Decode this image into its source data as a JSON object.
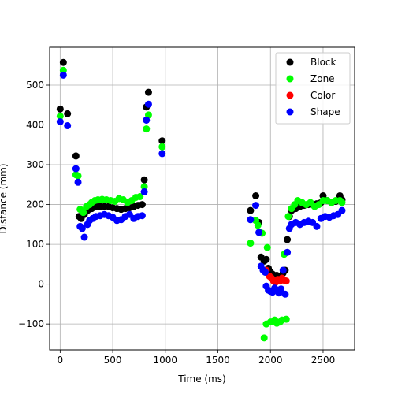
{
  "chart_data": {
    "type": "scatter",
    "title": "",
    "xlabel": "Time (ms)",
    "ylabel": "Distance (mm)",
    "xlim": [
      -100,
      2800
    ],
    "ylim": [
      -165,
      595
    ],
    "xticks": [
      0,
      500,
      1000,
      1500,
      2000,
      2500
    ],
    "yticks": [
      -100,
      0,
      100,
      200,
      300,
      400,
      500
    ],
    "grid": true,
    "legend_position": "top-right",
    "series": [
      {
        "name": "Block",
        "color": "#000000",
        "points": [
          [
            0,
            440
          ],
          [
            30,
            557
          ],
          [
            70,
            428
          ],
          [
            150,
            322
          ],
          [
            180,
            170
          ],
          [
            200,
            165
          ],
          [
            230,
            175
          ],
          [
            260,
            185
          ],
          [
            300,
            190
          ],
          [
            340,
            195
          ],
          [
            380,
            195
          ],
          [
            420,
            195
          ],
          [
            460,
            195
          ],
          [
            500,
            192
          ],
          [
            540,
            190
          ],
          [
            580,
            188
          ],
          [
            620,
            190
          ],
          [
            660,
            192
          ],
          [
            700,
            195
          ],
          [
            740,
            198
          ],
          [
            780,
            200
          ],
          [
            800,
            262
          ],
          [
            820,
            445
          ],
          [
            840,
            482
          ],
          [
            970,
            360
          ],
          [
            1810,
            185
          ],
          [
            1860,
            222
          ],
          [
            1890,
            155
          ],
          [
            1910,
            68
          ],
          [
            1940,
            58
          ],
          [
            1960,
            62
          ],
          [
            1980,
            40
          ],
          [
            2000,
            30
          ],
          [
            2020,
            25
          ],
          [
            2040,
            20
          ],
          [
            2060,
            22
          ],
          [
            2080,
            18
          ],
          [
            2100,
            20
          ],
          [
            2120,
            28
          ],
          [
            2140,
            35
          ],
          [
            2160,
            112
          ],
          [
            2180,
            170
          ],
          [
            2200,
            185
          ],
          [
            2240,
            190
          ],
          [
            2280,
            195
          ],
          [
            2320,
            198
          ],
          [
            2360,
            200
          ],
          [
            2400,
            200
          ],
          [
            2440,
            202
          ],
          [
            2480,
            205
          ],
          [
            2500,
            222
          ],
          [
            2540,
            210
          ],
          [
            2580,
            205
          ],
          [
            2620,
            208
          ],
          [
            2660,
            222
          ],
          [
            2680,
            212
          ]
        ]
      },
      {
        "name": "Zone",
        "color": "#00ff00",
        "points": [
          [
            0,
            422
          ],
          [
            30,
            537
          ],
          [
            150,
            275
          ],
          [
            170,
            272
          ],
          [
            190,
            188
          ],
          [
            220,
            180
          ],
          [
            250,
            195
          ],
          [
            280,
            200
          ],
          [
            300,
            205
          ],
          [
            330,
            210
          ],
          [
            360,
            212
          ],
          [
            400,
            213
          ],
          [
            440,
            212
          ],
          [
            480,
            210
          ],
          [
            520,
            208
          ],
          [
            560,
            215
          ],
          [
            600,
            212
          ],
          [
            640,
            205
          ],
          [
            680,
            210
          ],
          [
            720,
            218
          ],
          [
            760,
            220
          ],
          [
            800,
            245
          ],
          [
            820,
            390
          ],
          [
            840,
            425
          ],
          [
            970,
            345
          ],
          [
            1810,
            103
          ],
          [
            1860,
            160
          ],
          [
            1880,
            148
          ],
          [
            1900,
            130
          ],
          [
            1920,
            128
          ],
          [
            1940,
            -135
          ],
          [
            1960,
            -100
          ],
          [
            1970,
            92
          ],
          [
            2000,
            -95
          ],
          [
            2040,
            -90
          ],
          [
            2060,
            -98
          ],
          [
            2090,
            -95
          ],
          [
            2110,
            -90
          ],
          [
            2130,
            75
          ],
          [
            2150,
            -88
          ],
          [
            2170,
            170
          ],
          [
            2200,
            190
          ],
          [
            2230,
            200
          ],
          [
            2260,
            210
          ],
          [
            2300,
            205
          ],
          [
            2340,
            200
          ],
          [
            2380,
            205
          ],
          [
            2420,
            195
          ],
          [
            2460,
            200
          ],
          [
            2500,
            210
          ],
          [
            2540,
            210
          ],
          [
            2580,
            205
          ],
          [
            2620,
            210
          ],
          [
            2660,
            210
          ],
          [
            2680,
            205
          ]
        ]
      },
      {
        "name": "Color",
        "color": "#ff0000",
        "points": [
          [
            1960,
            35
          ],
          [
            1990,
            20
          ],
          [
            2010,
            15
          ],
          [
            2030,
            8
          ],
          [
            2050,
            5
          ],
          [
            2070,
            12
          ],
          [
            2090,
            8
          ],
          [
            2110,
            15
          ],
          [
            2130,
            10
          ],
          [
            2150,
            8
          ]
        ]
      },
      {
        "name": "Shape",
        "color": "#0000ff",
        "points": [
          [
            0,
            408
          ],
          [
            30,
            525
          ],
          [
            70,
            398
          ],
          [
            150,
            290
          ],
          [
            170,
            256
          ],
          [
            190,
            145
          ],
          [
            210,
            140
          ],
          [
            230,
            118
          ],
          [
            260,
            150
          ],
          [
            280,
            160
          ],
          [
            310,
            165
          ],
          [
            340,
            170
          ],
          [
            380,
            172
          ],
          [
            420,
            175
          ],
          [
            460,
            172
          ],
          [
            500,
            168
          ],
          [
            540,
            160
          ],
          [
            580,
            162
          ],
          [
            620,
            170
          ],
          [
            660,
            175
          ],
          [
            700,
            165
          ],
          [
            740,
            170
          ],
          [
            780,
            172
          ],
          [
            800,
            232
          ],
          [
            820,
            412
          ],
          [
            840,
            452
          ],
          [
            970,
            328
          ],
          [
            1810,
            162
          ],
          [
            1860,
            198
          ],
          [
            1890,
            130
          ],
          [
            1910,
            45
          ],
          [
            1930,
            35
          ],
          [
            1950,
            30
          ],
          [
            1960,
            -5
          ],
          [
            1980,
            -15
          ],
          [
            2000,
            -18
          ],
          [
            2020,
            -20
          ],
          [
            2040,
            -10
          ],
          [
            2060,
            -15
          ],
          [
            2080,
            -22
          ],
          [
            2100,
            -12
          ],
          [
            2120,
            35
          ],
          [
            2140,
            -25
          ],
          [
            2160,
            80
          ],
          [
            2180,
            140
          ],
          [
            2200,
            150
          ],
          [
            2240,
            155
          ],
          [
            2280,
            150
          ],
          [
            2320,
            155
          ],
          [
            2360,
            158
          ],
          [
            2400,
            155
          ],
          [
            2440,
            145
          ],
          [
            2480,
            165
          ],
          [
            2520,
            170
          ],
          [
            2560,
            168
          ],
          [
            2600,
            172
          ],
          [
            2640,
            175
          ],
          [
            2680,
            185
          ]
        ]
      }
    ]
  }
}
